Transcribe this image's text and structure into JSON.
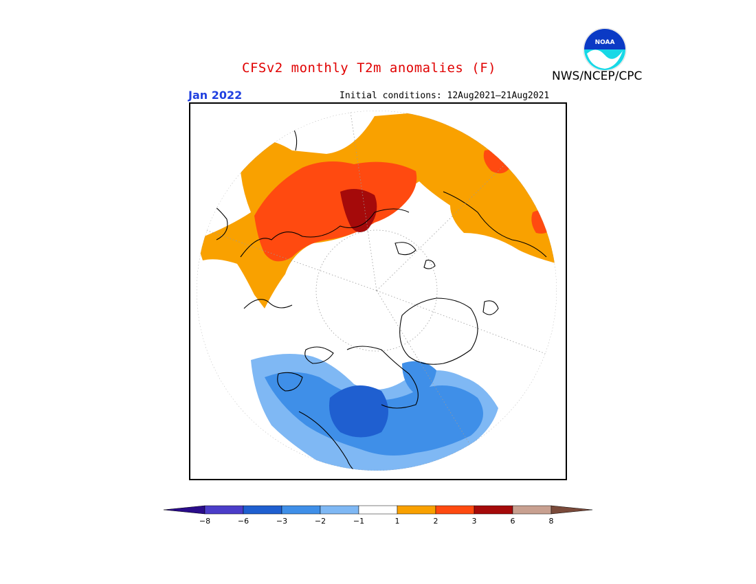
{
  "header": {
    "title": "CFSv2 monthly T2m anomalies (F)",
    "agency": "NWS/NCEP/CPC",
    "logo_text": "NOAA",
    "valid_month": "Jan 2022",
    "initial_conditions": "Initial conditions: 12Aug2021–21Aug2021"
  },
  "legend": {
    "tick_labels": [
      "−8",
      "−6",
      "−3",
      "−2",
      "−1",
      "1",
      "2",
      "3",
      "6",
      "8"
    ],
    "colors": {
      "lt_-8": "#2a0c8a",
      "-8_-6": "#4b3dc9",
      "-6_-3": "#1f5fd0",
      "-3_-2": "#3f8fe8",
      "-2_-1": "#7fb8f4",
      "-1_1": "#ffffff",
      "1_2": "#f9a100",
      "2_3": "#ff4a10",
      "3_6": "#a50a0a",
      "6_8": "#c8a090",
      "gt_8": "#7a4a3a"
    }
  },
  "map": {
    "projection": "north-polar-stereographic",
    "anomaly_regions": [
      {
        "name": "eurasia-warm",
        "category": "1_2"
      },
      {
        "name": "siberia-warmer",
        "category": "2_3"
      },
      {
        "name": "central-siberia-warmest",
        "category": "3_6"
      },
      {
        "name": "north-america-cold",
        "category": "-2_-1"
      },
      {
        "name": "canada-colder",
        "category": "-3_-2"
      },
      {
        "name": "hudson-bay-coldest",
        "category": "-6_-3"
      }
    ]
  }
}
